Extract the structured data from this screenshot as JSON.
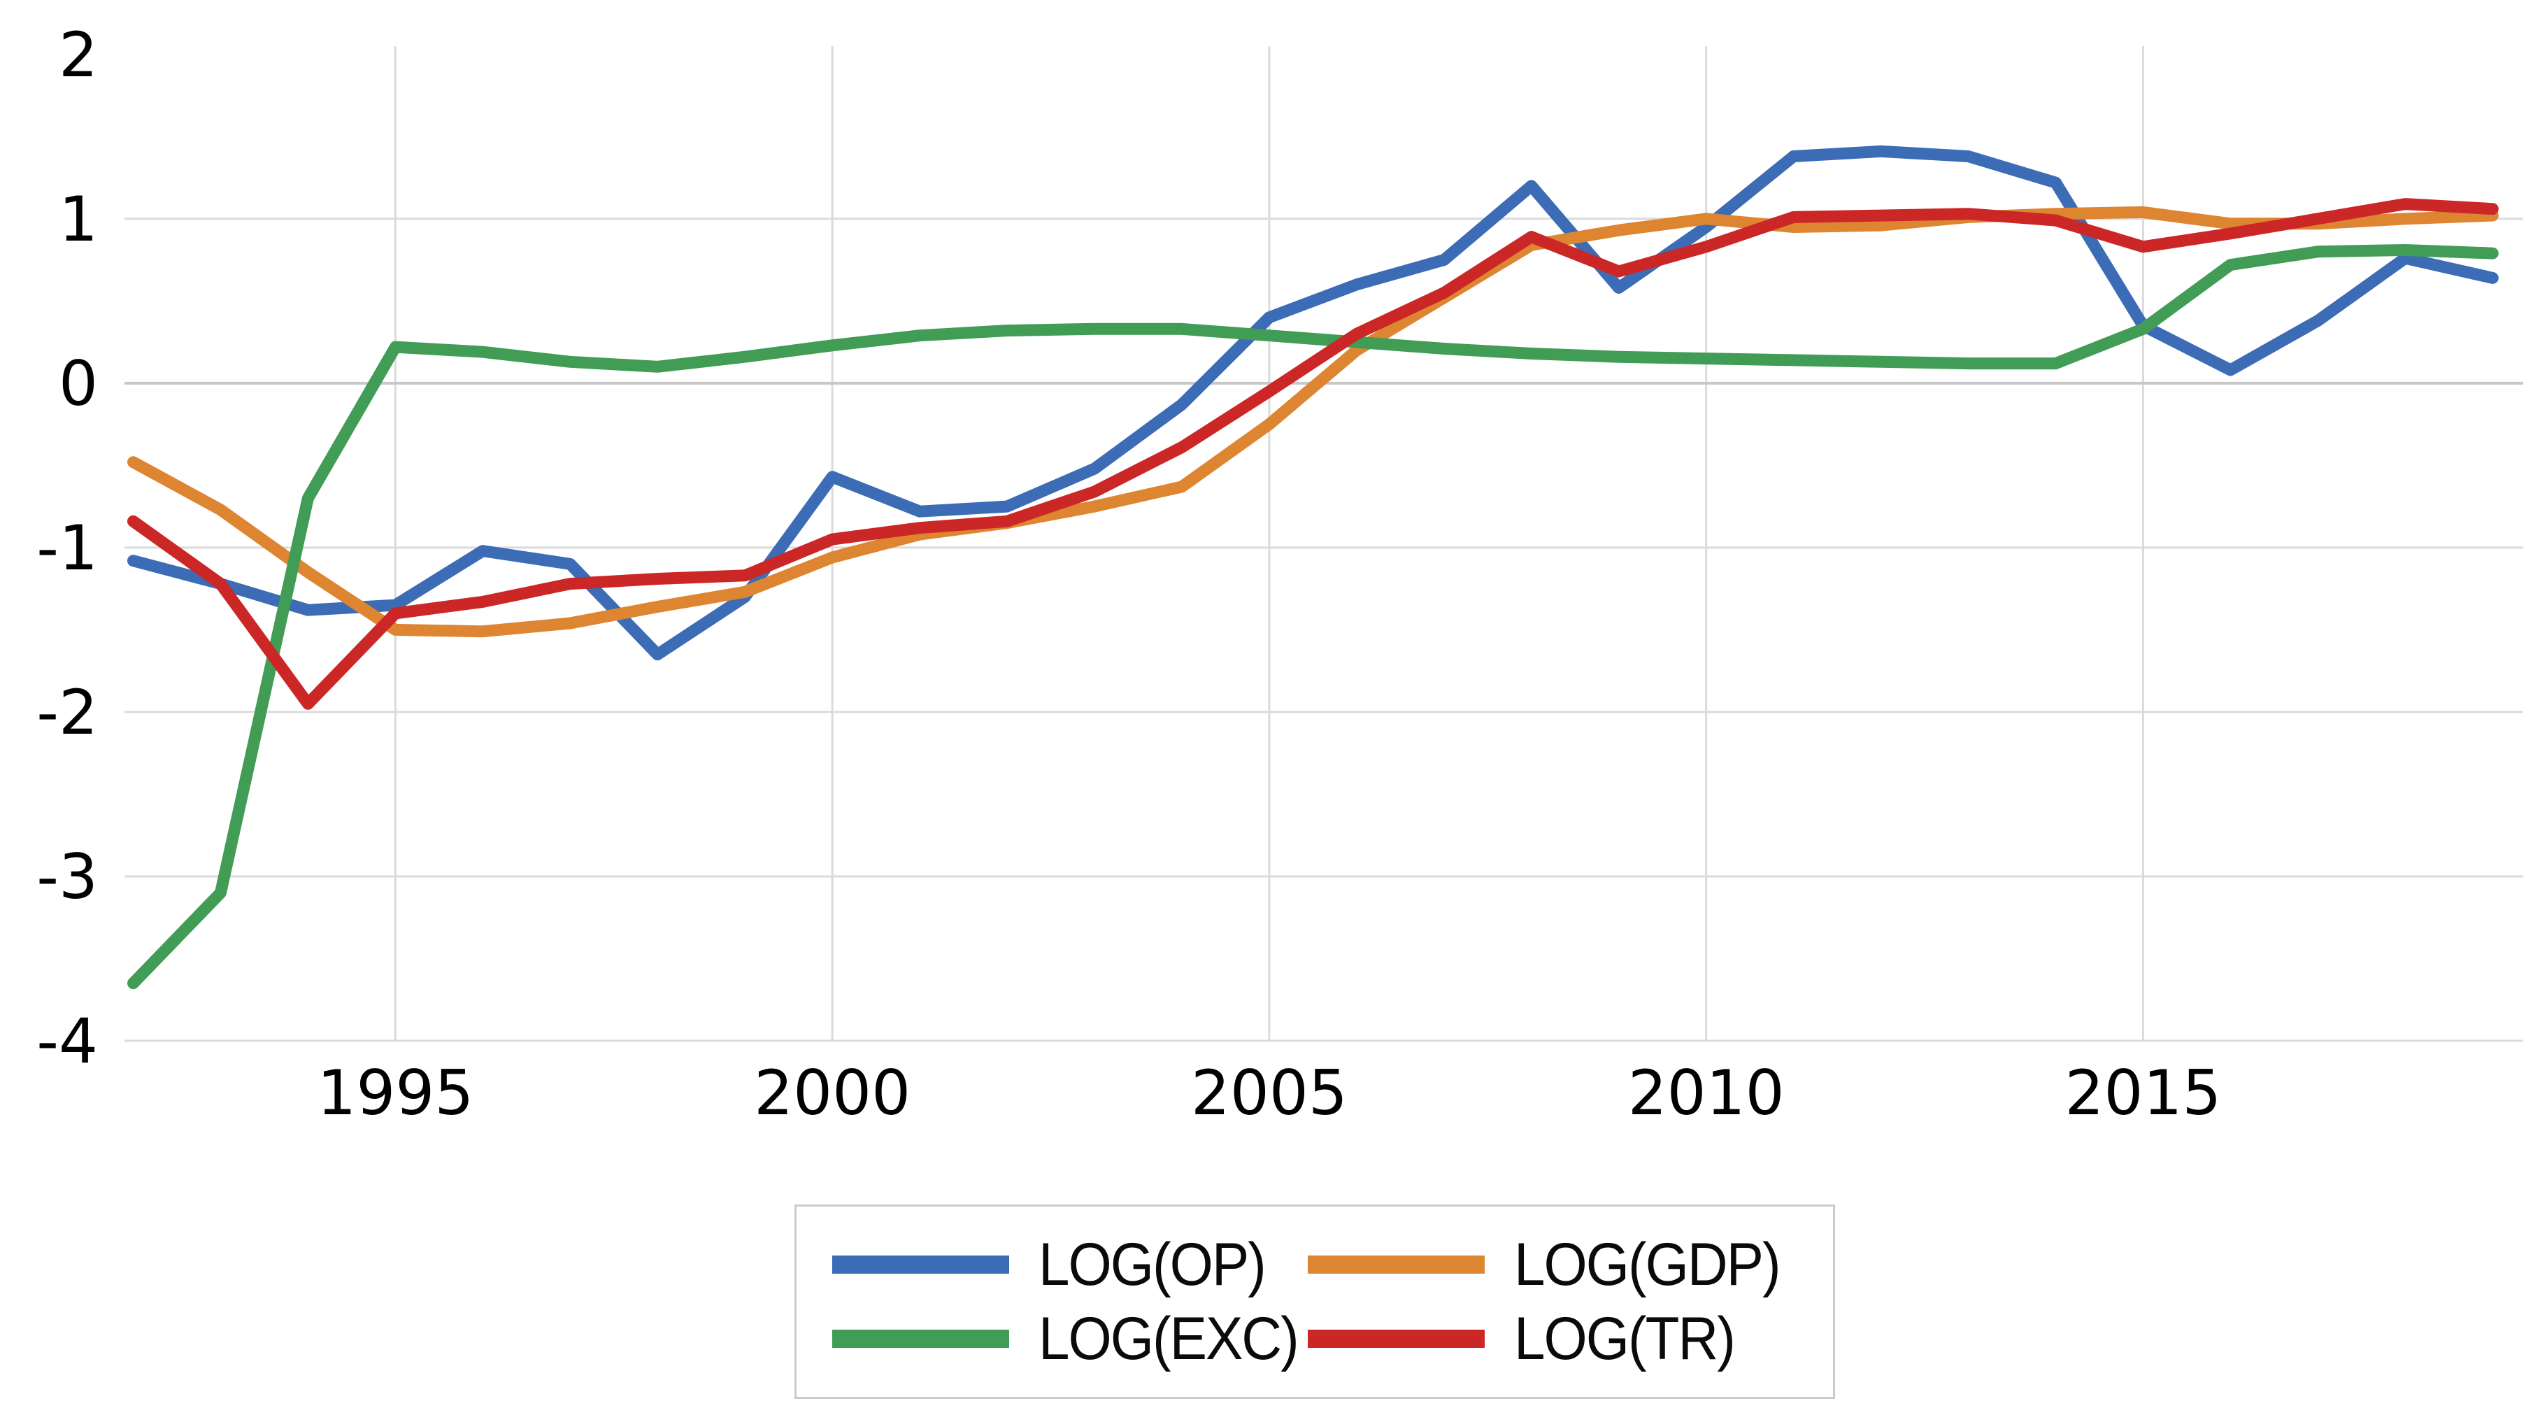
{
  "chart_data": {
    "type": "line",
    "title": "",
    "xlabel": "",
    "ylabel": "",
    "x": [
      1992,
      1993,
      1994,
      1995,
      1996,
      1997,
      1998,
      1999,
      2000,
      2001,
      2002,
      2003,
      2004,
      2005,
      2006,
      2007,
      2008,
      2009,
      2010,
      2011,
      2012,
      2013,
      2014,
      2015,
      2016,
      2017,
      2018,
      2019
    ],
    "series": [
      {
        "name": "LOG(OP)",
        "color": "#3b6cb5",
        "values": [
          -1.08,
          -1.22,
          -1.38,
          -1.35,
          -1.02,
          -1.1,
          -1.65,
          -1.3,
          -0.57,
          -0.78,
          -0.75,
          -0.52,
          -0.13,
          0.4,
          0.6,
          0.75,
          1.2,
          0.58,
          0.95,
          1.38,
          1.41,
          1.38,
          1.22,
          0.35,
          0.08,
          0.38,
          0.76,
          0.64
        ]
      },
      {
        "name": "LOG(GDP)",
        "color": "#de8532",
        "values": [
          -0.48,
          -0.77,
          -1.15,
          -1.5,
          -1.51,
          -1.46,
          -1.36,
          -1.27,
          -1.06,
          -0.92,
          -0.85,
          -0.75,
          -0.63,
          -0.25,
          0.2,
          0.52,
          0.84,
          0.93,
          1.0,
          0.95,
          0.96,
          1.01,
          1.03,
          1.04,
          0.97,
          0.97,
          1.0,
          1.02
        ]
      },
      {
        "name": "LOG(EXC)",
        "color": "#419c55",
        "values": [
          -3.65,
          -3.1,
          -0.7,
          0.22,
          0.19,
          0.13,
          0.1,
          0.16,
          0.23,
          0.29,
          0.32,
          0.33,
          0.33,
          0.29,
          0.25,
          0.21,
          0.18,
          0.16,
          0.15,
          0.14,
          0.13,
          0.12,
          0.12,
          0.33,
          0.72,
          0.8,
          0.81,
          0.79
        ]
      },
      {
        "name": "LOG(TR)",
        "color": "#cb2726",
        "values": [
          -0.84,
          -1.22,
          -1.95,
          -1.4,
          -1.33,
          -1.22,
          -1.19,
          -1.17,
          -0.95,
          -0.88,
          -0.84,
          -0.66,
          -0.39,
          -0.05,
          0.3,
          0.55,
          0.89,
          0.68,
          0.83,
          1.01,
          1.02,
          1.03,
          0.99,
          0.83,
          0.91,
          1.0,
          1.09,
          1.06
        ]
      }
    ],
    "x_ticks": [
      {
        "year": 1995,
        "label": "1995"
      },
      {
        "year": 2000,
        "label": "2000"
      },
      {
        "year": 2005,
        "label": "2005"
      },
      {
        "year": 2010,
        "label": "2010"
      },
      {
        "year": 2015,
        "label": "2015"
      }
    ],
    "y_ticks": [
      {
        "value": 2,
        "label": "2"
      },
      {
        "value": 1,
        "label": "1"
      },
      {
        "value": 0,
        "label": "0"
      },
      {
        "value": -1,
        "label": "-1"
      },
      {
        "value": -2,
        "label": "-2"
      },
      {
        "value": -3,
        "label": "-3"
      },
      {
        "value": -4,
        "label": "-4"
      }
    ],
    "ylim": [
      -4,
      2.05
    ],
    "xlim": [
      1991.9,
      2019.35
    ],
    "grid": true,
    "legend_position": "bottom-center",
    "legend_entries": [
      "LOG(OP)",
      "LOG(GDP)",
      "LOG(EXC)",
      "LOG(TR)"
    ],
    "colors": {
      "background": "#ffffff",
      "gridline": "#dbdbdb",
      "zero_line": "#c8c8c8",
      "tick_text": "#000000",
      "legend_border": "#cbcbcb"
    }
  }
}
